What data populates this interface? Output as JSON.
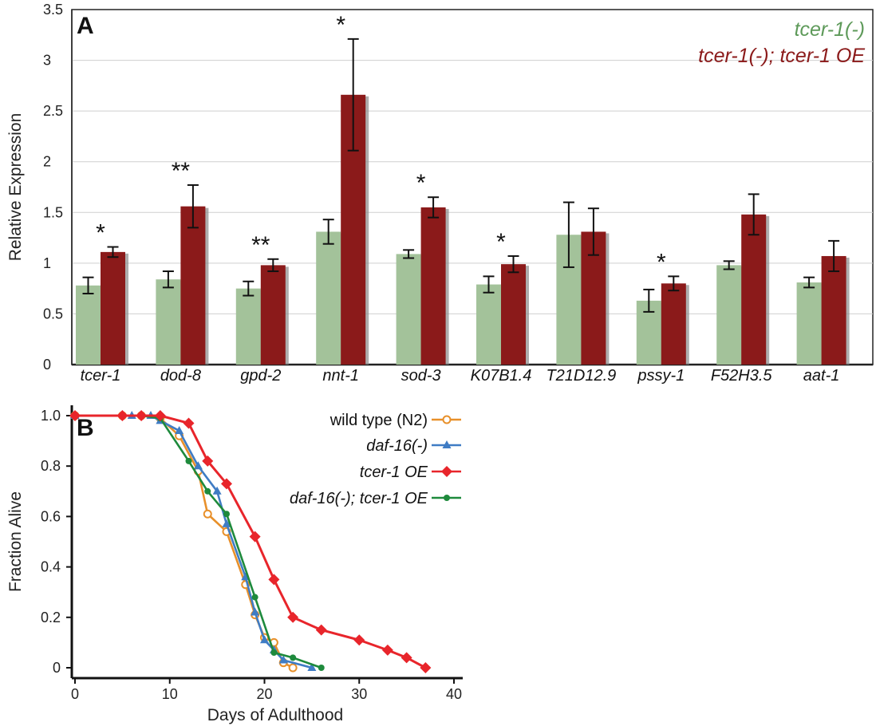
{
  "chart_data": [
    {
      "panel": "A",
      "type": "bar",
      "ylabel": "Relative Expression",
      "ylim": [
        0,
        3.5
      ],
      "yticks": [
        "0",
        "0.5",
        "1",
        "1.5",
        "2",
        "2.5",
        "3",
        "3.5"
      ],
      "categories": [
        "tcer-1",
        "dod-8",
        "gpd-2",
        "nnt-1",
        "sod-3",
        "K07B1.4",
        "T21D12.9",
        "pssy-1",
        "F52H3.5",
        "aat-1"
      ],
      "grid": true,
      "legend_position": "top-right",
      "series": [
        {
          "name": "tcer-1(-)",
          "color": "#a3c29a",
          "values": [
            0.78,
            0.84,
            0.75,
            1.31,
            1.09,
            0.79,
            1.28,
            0.63,
            0.98,
            0.81
          ],
          "errors": [
            0.08,
            0.08,
            0.07,
            0.12,
            0.04,
            0.08,
            0.32,
            0.11,
            0.04,
            0.05
          ]
        },
        {
          "name": "tcer-1(-); tcer-1 OE",
          "color": "#8b1a1a",
          "values": [
            1.11,
            1.56,
            0.98,
            2.66,
            1.55,
            0.99,
            1.31,
            0.8,
            1.48,
            1.07
          ],
          "errors": [
            0.05,
            0.21,
            0.06,
            0.55,
            0.1,
            0.08,
            0.23,
            0.07,
            0.2,
            0.15
          ]
        }
      ],
      "significance": [
        "*",
        "**",
        "**",
        "*",
        "*",
        "*",
        "",
        "*",
        "",
        ""
      ]
    },
    {
      "panel": "B",
      "type": "line",
      "xlabel": "Days of Adulthood",
      "ylabel": "Fraction Alive",
      "xlim": [
        0,
        40
      ],
      "ylim": [
        0,
        1.0
      ],
      "xticks": [
        "0",
        "10",
        "20",
        "30",
        "40"
      ],
      "yticks": [
        "0",
        "0.2",
        "0.4",
        "0.6",
        "0.8",
        "1.0"
      ],
      "legend_position": "top-right",
      "series": [
        {
          "name": "wild type (N2)",
          "color": "#e8902a",
          "marker": "open-circle",
          "x": [
            0,
            5,
            7,
            9,
            11,
            13,
            14,
            16,
            18,
            19,
            20,
            21,
            22,
            23
          ],
          "y": [
            1.0,
            1.0,
            1.0,
            0.99,
            0.92,
            0.78,
            0.61,
            0.54,
            0.33,
            0.21,
            0.12,
            0.1,
            0.02,
            0.0
          ]
        },
        {
          "name": "daf-16(-)",
          "color": "#3f7cc4",
          "marker": "triangle",
          "x": [
            0,
            6,
            8,
            9,
            11,
            13,
            15,
            16,
            18,
            19,
            20,
            21,
            22,
            25
          ],
          "y": [
            1.0,
            1.0,
            1.0,
            0.98,
            0.94,
            0.8,
            0.7,
            0.57,
            0.36,
            0.22,
            0.11,
            0.07,
            0.03,
            0.0
          ]
        },
        {
          "name": "tcer-1 OE",
          "color": "#e8252b",
          "marker": "diamond",
          "x": [
            0,
            5,
            7,
            9,
            12,
            14,
            16,
            19,
            21,
            23,
            26,
            30,
            33,
            35,
            37
          ],
          "y": [
            1.0,
            1.0,
            1.0,
            1.0,
            0.97,
            0.82,
            0.73,
            0.52,
            0.35,
            0.2,
            0.15,
            0.11,
            0.07,
            0.04,
            0.0
          ]
        },
        {
          "name": "daf-16(-); tcer-1 OE",
          "color": "#1e8a3c",
          "marker": "filled-circle",
          "x": [
            0,
            5,
            7,
            9,
            12,
            14,
            16,
            19,
            21,
            23,
            26
          ],
          "y": [
            1.0,
            1.0,
            1.0,
            0.99,
            0.82,
            0.7,
            0.61,
            0.28,
            0.06,
            0.04,
            0.0
          ]
        }
      ]
    }
  ],
  "panel_labels": [
    "A",
    "B"
  ]
}
